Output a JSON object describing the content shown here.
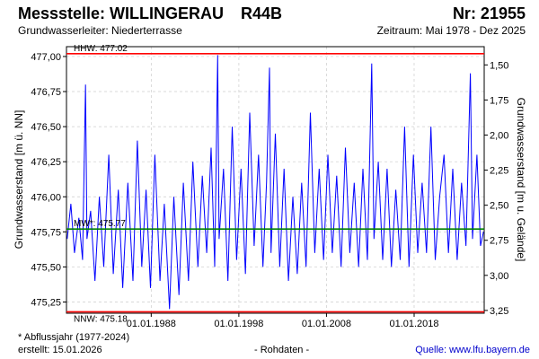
{
  "header": {
    "station_label": "Messstelle: WILLINGERAU",
    "code": "R44B",
    "number": "Nr: 21955",
    "aquifer": "Grundwasserleiter:  Niederterrasse",
    "period": "Zeitraum: Mai 1978 - Dez 2025"
  },
  "footer": {
    "note": "* Abflussjahr (1977-2024)",
    "created": "erstellt:  15.01.2026",
    "data_type": "- Rohdaten -",
    "source": "Quelle: www.lfu.bayern.de"
  },
  "colors": {
    "series": "#0000ff",
    "hhw_line": "#ff0000",
    "nnw_line": "#ff0000",
    "mw_line": "#008000",
    "grid": "#cccccc"
  },
  "chart_data": {
    "type": "line",
    "title": "",
    "ylabel_left": "Grundwasserstand [m ü. NN]",
    "ylabel_right": "Grundwasserstand [m u. Gelände]",
    "ylim_left": [
      475.17,
      477.07
    ],
    "ylim_right_depth": [
      3.27,
      1.37
    ],
    "y_ticks_left": [
      "477,00",
      "476,75",
      "476,50",
      "476,25",
      "476,00",
      "475,75",
      "475,50",
      "475,25"
    ],
    "y_tick_values_left": [
      477.0,
      476.75,
      476.5,
      476.25,
      476.0,
      475.75,
      475.5,
      475.25
    ],
    "y_ticks_right": [
      "1,50",
      "1,75",
      "2,00",
      "2,25",
      "2,50",
      "2,75",
      "3,00",
      "3,25"
    ],
    "y_tick_values_right": [
      1.5,
      1.75,
      2.0,
      2.25,
      2.5,
      2.75,
      3.0,
      3.25
    ],
    "x_range": [
      "1978-05-01",
      "2025-12-31"
    ],
    "x_ticks": [
      "01.01.1988",
      "01.01.1998",
      "01.01.2008",
      "01.01.2018"
    ],
    "x_tick_dates": [
      "1988-01-01",
      "1998-01-01",
      "2008-01-01",
      "2018-01-01"
    ],
    "grid": true,
    "reference_lines": [
      {
        "label": "HHW: 477.02",
        "value": 477.02,
        "kind": "hhw"
      },
      {
        "label": "MW*: 475.77",
        "value": 475.77,
        "kind": "mw"
      },
      {
        "label": "NNW: 475.18",
        "value": 475.18,
        "kind": "nnw"
      }
    ],
    "series": [
      {
        "points": [
          [
            "1978-06-01",
            475.7
          ],
          [
            "1978-11-01",
            475.95
          ],
          [
            "1979-04-01",
            475.6
          ],
          [
            "1979-10-01",
            475.85
          ],
          [
            "1980-03-01",
            475.55
          ],
          [
            "1980-07-01",
            476.8
          ],
          [
            "1980-09-01",
            475.7
          ],
          [
            "1981-02-01",
            475.9
          ],
          [
            "1981-08-01",
            475.4
          ],
          [
            "1982-02-01",
            476.0
          ],
          [
            "1982-08-01",
            475.5
          ],
          [
            "1983-03-01",
            476.3
          ],
          [
            "1983-09-01",
            475.45
          ],
          [
            "1984-04-01",
            476.05
          ],
          [
            "1984-10-01",
            475.35
          ],
          [
            "1985-05-01",
            476.1
          ],
          [
            "1985-12-01",
            475.4
          ],
          [
            "1986-06-01",
            476.4
          ],
          [
            "1986-12-01",
            475.5
          ],
          [
            "1987-06-01",
            476.05
          ],
          [
            "1987-12-01",
            475.35
          ],
          [
            "1988-06-01",
            476.3
          ],
          [
            "1989-01-01",
            475.4
          ],
          [
            "1989-07-01",
            475.95
          ],
          [
            "1990-02-01",
            475.2
          ],
          [
            "1990-08-01",
            476.0
          ],
          [
            "1991-03-01",
            475.3
          ],
          [
            "1991-09-01",
            476.1
          ],
          [
            "1992-04-01",
            475.4
          ],
          [
            "1992-10-01",
            476.25
          ],
          [
            "1993-05-01",
            475.5
          ],
          [
            "1993-11-01",
            476.15
          ],
          [
            "1994-05-01",
            475.6
          ],
          [
            "1994-11-01",
            476.35
          ],
          [
            "1995-04-01",
            475.5
          ],
          [
            "1995-08-01",
            477.01
          ],
          [
            "1995-10-01",
            475.7
          ],
          [
            "1996-04-01",
            476.2
          ],
          [
            "1996-10-01",
            475.4
          ],
          [
            "1997-04-01",
            476.5
          ],
          [
            "1997-10-01",
            475.55
          ],
          [
            "1998-04-01",
            476.2
          ],
          [
            "1998-10-01",
            475.45
          ],
          [
            "1999-04-01",
            476.6
          ],
          [
            "1999-10-01",
            475.65
          ],
          [
            "2000-04-01",
            476.3
          ],
          [
            "2000-10-01",
            475.5
          ],
          [
            "2001-03-01",
            476.1
          ],
          [
            "2001-07-01",
            476.92
          ],
          [
            "2001-09-01",
            475.6
          ],
          [
            "2002-03-01",
            476.45
          ],
          [
            "2002-09-01",
            475.5
          ],
          [
            "2003-03-01",
            476.2
          ],
          [
            "2003-09-01",
            475.4
          ],
          [
            "2004-03-01",
            476.0
          ],
          [
            "2004-09-01",
            475.45
          ],
          [
            "2005-03-01",
            476.1
          ],
          [
            "2005-09-01",
            475.5
          ],
          [
            "2006-03-01",
            476.6
          ],
          [
            "2006-09-01",
            475.6
          ],
          [
            "2007-03-01",
            476.2
          ],
          [
            "2007-09-01",
            475.55
          ],
          [
            "2008-03-01",
            476.3
          ],
          [
            "2008-09-01",
            475.6
          ],
          [
            "2009-03-01",
            476.15
          ],
          [
            "2009-09-01",
            475.5
          ],
          [
            "2010-03-01",
            476.35
          ],
          [
            "2010-09-01",
            475.6
          ],
          [
            "2011-03-01",
            476.1
          ],
          [
            "2011-09-01",
            475.5
          ],
          [
            "2012-03-01",
            476.2
          ],
          [
            "2012-09-01",
            475.55
          ],
          [
            "2013-03-01",
            476.95
          ],
          [
            "2013-06-01",
            475.7
          ],
          [
            "2013-12-01",
            476.25
          ],
          [
            "2014-06-01",
            475.55
          ],
          [
            "2014-12-01",
            476.2
          ],
          [
            "2015-06-01",
            475.5
          ],
          [
            "2015-12-01",
            476.05
          ],
          [
            "2016-06-01",
            475.55
          ],
          [
            "2016-12-01",
            476.5
          ],
          [
            "2017-06-01",
            475.5
          ],
          [
            "2017-12-01",
            476.3
          ],
          [
            "2018-06-01",
            475.6
          ],
          [
            "2018-12-01",
            476.1
          ],
          [
            "2019-06-01",
            475.6
          ],
          [
            "2019-12-01",
            476.5
          ],
          [
            "2020-06-01",
            475.55
          ],
          [
            "2020-12-01",
            476.0
          ],
          [
            "2021-06-01",
            476.3
          ],
          [
            "2021-12-01",
            475.6
          ],
          [
            "2022-06-01",
            476.2
          ],
          [
            "2022-12-01",
            475.55
          ],
          [
            "2023-06-01",
            476.1
          ],
          [
            "2023-12-01",
            475.65
          ],
          [
            "2024-06-01",
            476.88
          ],
          [
            "2024-09-01",
            475.7
          ],
          [
            "2025-03-01",
            476.3
          ],
          [
            "2025-08-01",
            475.65
          ],
          [
            "2025-12-01",
            475.75
          ]
        ]
      }
    ]
  }
}
